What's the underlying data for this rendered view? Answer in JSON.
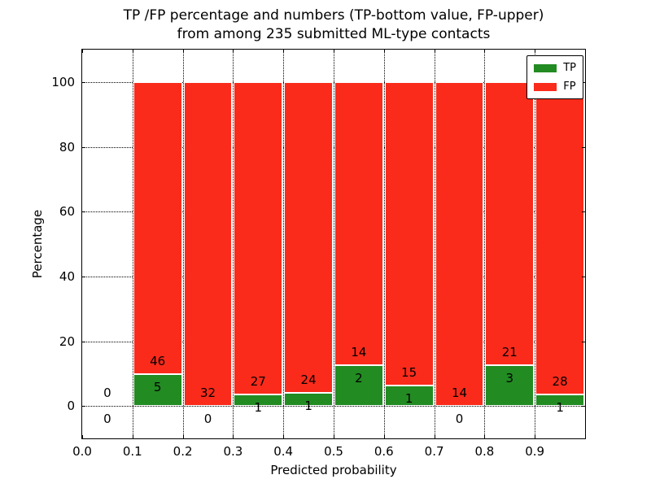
{
  "chart_data": {
    "type": "bar",
    "stacked": true,
    "units": "percent",
    "title_lines": [
      "TP /FP percentage and numbers (TP-bottom value, FP-upper)",
      "from among 235 submitted ML-type contacts"
    ],
    "xlabel": "Predicted probability",
    "ylabel": "Percentage",
    "xlim": [
      0.0,
      1.0
    ],
    "ylim": [
      -10,
      110
    ],
    "x_tick_labels": [
      "0.0",
      "0.1",
      "0.2",
      "0.3",
      "0.4",
      "0.5",
      "0.6",
      "0.7",
      "0.8",
      "0.9"
    ],
    "y_tick_values": [
      0,
      20,
      40,
      60,
      80,
      100
    ],
    "grid": {
      "style": "dotted",
      "color": "#000000"
    },
    "bar_edge_color": "#ffffff",
    "bin_width": 0.1,
    "bins": [
      {
        "x_start": 0.0,
        "tp": 0,
        "fp": 0
      },
      {
        "x_start": 0.1,
        "tp": 5,
        "fp": 46
      },
      {
        "x_start": 0.2,
        "tp": 0,
        "fp": 32
      },
      {
        "x_start": 0.3,
        "tp": 1,
        "fp": 27
      },
      {
        "x_start": 0.4,
        "tp": 1,
        "fp": 24
      },
      {
        "x_start": 0.5,
        "tp": 2,
        "fp": 14
      },
      {
        "x_start": 0.6,
        "tp": 1,
        "fp": 15
      },
      {
        "x_start": 0.7,
        "tp": 0,
        "fp": 14
      },
      {
        "x_start": 0.8,
        "tp": 3,
        "fp": 21
      },
      {
        "x_start": 0.9,
        "tp": 1,
        "fp": 28
      }
    ],
    "series": [
      {
        "name": "TP",
        "color": "#228b22",
        "position": "bottom"
      },
      {
        "name": "FP",
        "color": "#fa2b1b",
        "position": "top"
      }
    ],
    "legend": {
      "position": "upper-right",
      "entries": [
        {
          "label": "TP",
          "color": "#228b22"
        },
        {
          "label": "FP",
          "color": "#fa2b1b"
        }
      ]
    }
  }
}
